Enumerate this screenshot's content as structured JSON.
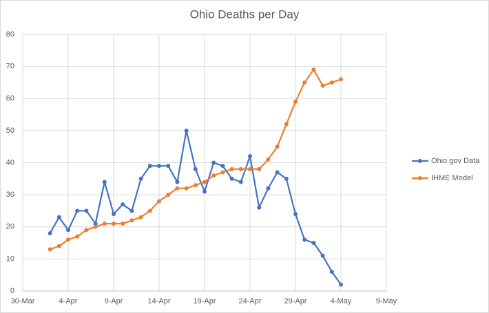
{
  "chart_data": {
    "type": "line",
    "title": "Ohio Deaths per Day",
    "x": [
      "2-Apr",
      "3-Apr",
      "4-Apr",
      "5-Apr",
      "6-Apr",
      "7-Apr",
      "8-Apr",
      "9-Apr",
      "10-Apr",
      "11-Apr",
      "12-Apr",
      "13-Apr",
      "14-Apr",
      "15-Apr",
      "16-Apr",
      "17-Apr",
      "18-Apr",
      "19-Apr",
      "20-Apr",
      "21-Apr",
      "22-Apr",
      "23-Apr",
      "24-Apr",
      "25-Apr",
      "26-Apr",
      "27-Apr",
      "28-Apr",
      "29-Apr",
      "30-Apr",
      "1-May",
      "2-May",
      "3-May",
      "4-May"
    ],
    "series": [
      {
        "name": "Ohio.gov Data",
        "color": "#4472c4",
        "values": [
          18,
          23,
          19,
          25,
          25,
          21,
          34,
          24,
          27,
          25,
          35,
          39,
          39,
          39,
          34,
          50,
          38,
          31,
          40,
          39,
          35,
          34,
          42,
          26,
          32,
          37,
          35,
          24,
          16,
          15,
          11,
          6,
          2
        ]
      },
      {
        "name": "IHME Model",
        "color": "#ed7d31",
        "values": [
          13,
          14,
          16,
          17,
          19,
          20,
          21,
          21,
          21,
          22,
          23,
          25,
          28,
          30,
          32,
          32,
          33,
          34,
          36,
          37,
          38,
          38,
          38,
          38,
          41,
          45,
          52,
          59,
          65,
          69,
          64,
          65,
          66
        ]
      }
    ],
    "xlim": [
      "30-Mar",
      "9-May"
    ],
    "xticks": [
      "30-Mar",
      "4-Apr",
      "9-Apr",
      "14-Apr",
      "19-Apr",
      "24-Apr",
      "29-Apr",
      "4-May",
      "9-May"
    ],
    "ylim": [
      0,
      80
    ],
    "yticks": [
      0,
      10,
      20,
      30,
      40,
      50,
      60,
      70,
      80
    ],
    "grid": true,
    "legend": "right"
  }
}
